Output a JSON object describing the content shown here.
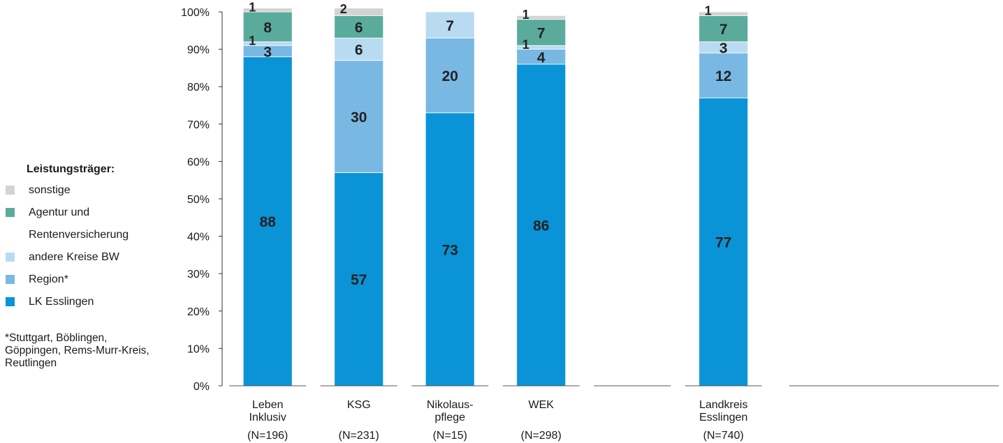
{
  "legend": {
    "title": "Leistungsträger:",
    "items": [
      {
        "label": "sonstige",
        "color": "#d3d3d3"
      },
      {
        "label": "Agentur und Rentenversicherung",
        "color": "#5aab9c"
      },
      {
        "label": "andere Kreise BW",
        "color": "#b9dbf2"
      },
      {
        "label": "Region*",
        "color": "#79b8e3"
      },
      {
        "label": "LK Esslingen",
        "color": "#0a93d7"
      }
    ]
  },
  "footnote": "*Stuttgart, Böblingen, Göppingen, Rems-Murr-Kreis, Reutlingen",
  "chart_data": {
    "type": "bar",
    "stacked": true,
    "categories": [
      {
        "name": "Leben Inklusiv",
        "n": "(N=196)"
      },
      {
        "name": "KSG",
        "n": "(N=231)"
      },
      {
        "name": "Nikolaus-pflege",
        "n": "(N=15)"
      },
      {
        "name": "WEK",
        "n": "(N=298)"
      },
      {
        "name": "",
        "n": ""
      },
      {
        "name": "Landkreis Esslingen",
        "n": "(N=740)"
      }
    ],
    "series": [
      {
        "name": "LK Esslingen",
        "color": "#0a93d7",
        "values": [
          88,
          57,
          73,
          86,
          null,
          77
        ]
      },
      {
        "name": "Region*",
        "color": "#79b8e3",
        "values": [
          3,
          30,
          20,
          4,
          null,
          12
        ]
      },
      {
        "name": "andere Kreise BW",
        "color": "#b9dbf2",
        "values": [
          1,
          6,
          7,
          1,
          null,
          3
        ]
      },
      {
        "name": "Agentur und Rentenversicherung",
        "color": "#5aab9c",
        "values": [
          8,
          6,
          0,
          7,
          null,
          7
        ]
      },
      {
        "name": "sonstige",
        "color": "#d3d3d3",
        "values": [
          1,
          2,
          0,
          1,
          null,
          1
        ]
      }
    ],
    "yticks": [
      "0%",
      "10%",
      "20%",
      "30%",
      "40%",
      "50%",
      "60%",
      "70%",
      "80%",
      "90%",
      "100%"
    ],
    "ylim": [
      0,
      100
    ]
  }
}
